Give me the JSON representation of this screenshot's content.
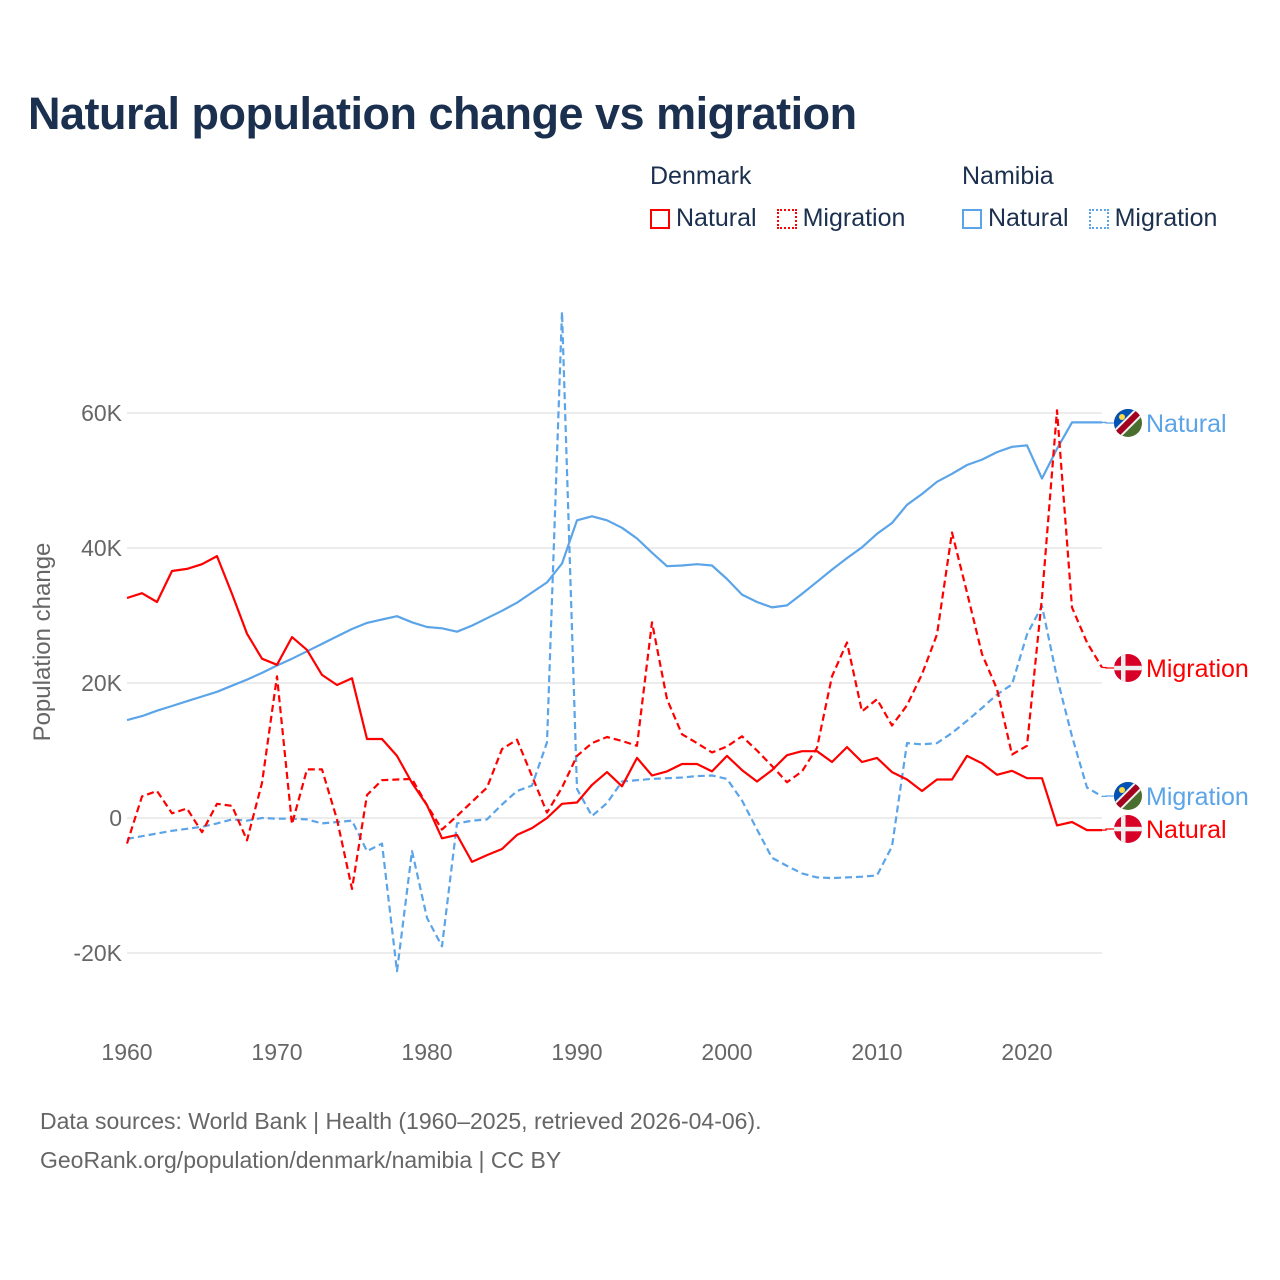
{
  "chart_data": {
    "type": "line",
    "title": "Natural population change vs migration",
    "xlabel": "",
    "ylabel": "Population change",
    "xlim": [
      1960,
      2025
    ],
    "ylim": [
      -30000,
      75000
    ],
    "grid": true,
    "x_ticks": [
      1960,
      1970,
      1980,
      1990,
      2000,
      2010,
      2020
    ],
    "x_tick_labels": [
      "1960",
      "1970",
      "1980",
      "1990",
      "2000",
      "2010",
      "2020"
    ],
    "y_ticks": [
      -20000,
      0,
      20000,
      40000,
      60000
    ],
    "y_tick_labels": [
      "-20K",
      "0",
      "20K",
      "40K",
      "60K"
    ],
    "legend": {
      "placement": "top-right",
      "groups": [
        {
          "name": "Denmark",
          "items": [
            {
              "label": "Natural",
              "style": "solid",
              "color": "#ff0000"
            },
            {
              "label": "Migration",
              "style": "dashed",
              "color": "#ff0000"
            }
          ]
        },
        {
          "name": "Namibia",
          "items": [
            {
              "label": "Natural",
              "style": "solid",
              "color": "#5ba4e8"
            },
            {
              "label": "Migration",
              "style": "dashed",
              "color": "#5ba4e8"
            }
          ]
        }
      ]
    },
    "x": [
      1960,
      1961,
      1962,
      1963,
      1964,
      1965,
      1966,
      1967,
      1968,
      1969,
      1970,
      1971,
      1972,
      1973,
      1974,
      1975,
      1976,
      1977,
      1978,
      1979,
      1980,
      1981,
      1982,
      1983,
      1984,
      1985,
      1986,
      1987,
      1988,
      1989,
      1990,
      1991,
      1992,
      1993,
      1994,
      1995,
      1996,
      1997,
      1998,
      1999,
      2000,
      2001,
      2002,
      2003,
      2004,
      2005,
      2006,
      2007,
      2008,
      2009,
      2010,
      2011,
      2012,
      2013,
      2014,
      2015,
      2016,
      2017,
      2018,
      2019,
      2020,
      2021,
      2022,
      2023,
      2024,
      2025
    ],
    "series": [
      {
        "name": "Denmark Natural",
        "end_label": "Natural",
        "country": "Denmark",
        "style": "solid",
        "color": "#ff0000",
        "values": [
          32600,
          33300,
          32000,
          36600,
          36900,
          37600,
          38800,
          33200,
          27300,
          23600,
          22700,
          26800,
          24900,
          21200,
          19700,
          20700,
          11700,
          11700,
          9200,
          5200,
          1900,
          -3000,
          -2500,
          -6500,
          -5500,
          -4600,
          -2500,
          -1500,
          0,
          2100,
          2300,
          4900,
          6800,
          4700,
          8900,
          6300,
          6900,
          8000,
          8000,
          6900,
          9200,
          7100,
          5400,
          7100,
          9300,
          9900,
          9900,
          8300,
          10500,
          8300,
          8900,
          6800,
          5700,
          4000,
          5700,
          5700,
          9200,
          8100,
          6400,
          7000,
          5900,
          5900,
          -1100,
          -600,
          -1800,
          -1800
        ]
      },
      {
        "name": "Denmark Migration",
        "end_label": "Migration",
        "country": "Denmark",
        "style": "dashed",
        "color": "#ff0000",
        "values": [
          -3800,
          3200,
          4000,
          700,
          1400,
          -2100,
          2100,
          1800,
          -3300,
          5200,
          21000,
          -900,
          7200,
          7200,
          -200,
          -10500,
          3400,
          5600,
          5700,
          5800,
          1900,
          -1700,
          300,
          2400,
          4500,
          10200,
          11600,
          6200,
          800,
          4500,
          9200,
          11100,
          12000,
          11400,
          10700,
          29000,
          17600,
          12400,
          11100,
          9700,
          10600,
          12100,
          10000,
          7700,
          5300,
          6900,
          10400,
          21000,
          26000,
          15800,
          17600,
          13700,
          16700,
          21300,
          27200,
          42300,
          33400,
          24300,
          19100,
          9400,
          10700,
          32700,
          60400,
          31200,
          26000,
          22300
        ]
      },
      {
        "name": "Namibia Natural",
        "end_label": "Natural",
        "country": "Namibia",
        "style": "solid",
        "color": "#5ba4e8",
        "values": [
          14500,
          15100,
          15900,
          16600,
          17300,
          18000,
          18700,
          19600,
          20500,
          21500,
          22600,
          23600,
          24700,
          25800,
          26900,
          28000,
          28900,
          29400,
          29900,
          29000,
          28300,
          28100,
          27600,
          28500,
          29600,
          30700,
          31900,
          33400,
          34900,
          37700,
          44100,
          44700,
          44100,
          43000,
          41400,
          39300,
          37300,
          37400,
          37600,
          37400,
          35400,
          33100,
          32000,
          31200,
          31500,
          33200,
          35000,
          36800,
          38500,
          40100,
          42100,
          43700,
          46400,
          48000,
          49800,
          51000,
          52300,
          53100,
          54200,
          55000,
          55200,
          50300,
          54700,
          58600,
          58600,
          58600
        ]
      },
      {
        "name": "Namibia Migration",
        "end_label": "Migration",
        "country": "Namibia",
        "style": "dashed",
        "color": "#5ba4e8",
        "values": [
          -3100,
          -2700,
          -2300,
          -1900,
          -1600,
          -1300,
          -800,
          -200,
          -400,
          0,
          -100,
          -100,
          -200,
          -800,
          -600,
          -400,
          -4900,
          -3800,
          -22700,
          -4900,
          -14800,
          -19000,
          -800,
          -400,
          -200,
          2000,
          4000,
          4800,
          11200,
          75000,
          4300,
          300,
          2200,
          5400,
          5600,
          5800,
          5900,
          6000,
          6200,
          6300,
          5800,
          2600,
          -1700,
          -5900,
          -7100,
          -8200,
          -8800,
          -8900,
          -8800,
          -8700,
          -8500,
          -4200,
          11100,
          10900,
          11100,
          12600,
          14400,
          16300,
          18300,
          19800,
          27200,
          31400,
          20800,
          12100,
          4500,
          3200
        ]
      }
    ],
    "end_label_order": [
      "Namibia Natural",
      "Denmark Migration",
      "Namibia Migration",
      "Denmark Natural"
    ]
  },
  "legend_text": {
    "denmark": "Denmark",
    "namibia": "Namibia",
    "dk_natural": "Natural",
    "dk_migration": "Migration",
    "na_natural": "Natural",
    "na_migration": "Migration"
  },
  "footer": {
    "line1": "Data sources: World Bank | Health (1960–2025, retrieved 2026-04-06).",
    "line2": "GeoRank.org/population/denmark/namibia | CC BY"
  }
}
